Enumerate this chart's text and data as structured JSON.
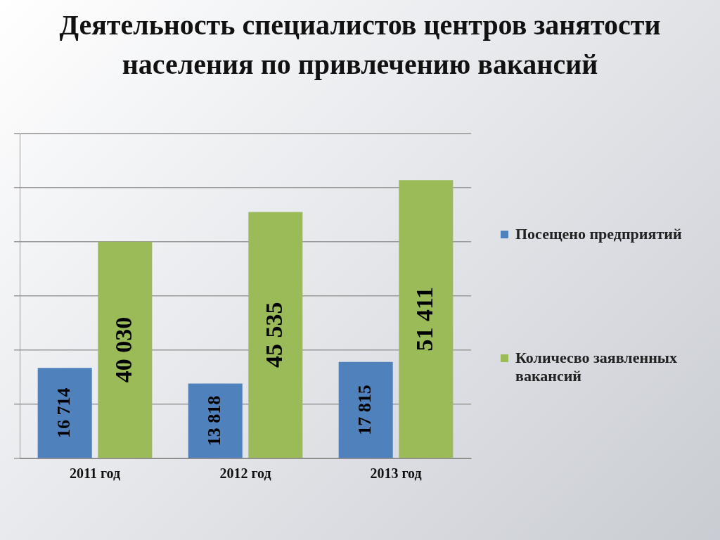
{
  "chart_data": {
    "type": "bar",
    "title": "Деятельность специалистов центров занятости населения по привлечению вакансий",
    "categories": [
      "2011 год",
      "2012 год",
      "2013 год"
    ],
    "series": [
      {
        "name": "Посещено предприятий",
        "color": "#4f81bd",
        "values": [
          16714,
          13818,
          17815
        ],
        "value_labels": [
          "16 714",
          "13 818",
          "17 815"
        ]
      },
      {
        "name": "Количесво заявленных вакансий",
        "color": "#9bbb59",
        "values": [
          40030,
          45535,
          51411
        ],
        "value_labels": [
          "40 030",
          "45 535",
          "51 411"
        ]
      }
    ],
    "tick_labels": "x",
    "grid": "y",
    "legend": "right"
  }
}
